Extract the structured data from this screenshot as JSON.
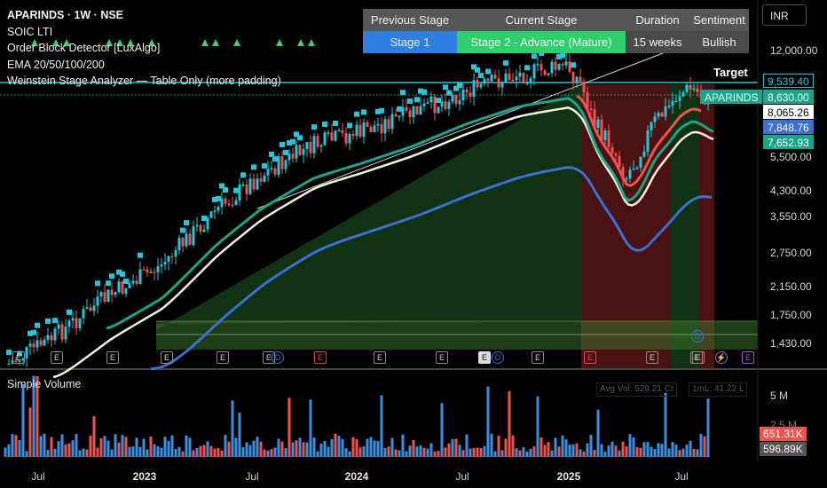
{
  "legend": {
    "symbol_line": "APARINDS · 1W · NSE",
    "indicator1": "SOIC LTI",
    "indicator2": "Order Block Detector [LuxAlgo]",
    "indicator3": "EMA 20/50/100/200",
    "indicator4": "Weinstein Stage Analyzer — Table Only (more padding)"
  },
  "stage_table": {
    "headers": [
      "Previous Stage",
      "Current Stage",
      "Duration",
      "Sentiment"
    ],
    "values": [
      "Stage 1",
      "Stage 2 - Advance (Mature)",
      "15 weeks",
      "Bullish"
    ],
    "prev_color": "#2f7fe0",
    "current_color": "#2fcf6d"
  },
  "currency_button": "INR",
  "target_label": "Target",
  "price_axis": [
    "12,000.00",
    "5,500.00",
    "4,300.00",
    "3,550.00",
    "2,750.00",
    "2,150.00",
    "1,750.00",
    "1,430.00"
  ],
  "price_tags": [
    {
      "text": "9,539.40",
      "bg": "#000000",
      "fg": "#26c6da",
      "border": "#26c6da"
    },
    {
      "text": "APARINDS",
      "bg": "#1aa58a",
      "fg": "#e8fff8",
      "border": "#1aa58a"
    },
    {
      "text": "8,630.00",
      "bg": "#1aa58a",
      "fg": "#ffffff",
      "border": "#1aa58a"
    },
    {
      "text": "8,065.26",
      "bg": "#ffffff",
      "fg": "#000000",
      "border": "#ffffff"
    },
    {
      "text": "7,848.76",
      "bg": "#3b6fd1",
      "fg": "#ffffff",
      "border": "#3b6fd1"
    },
    {
      "text": "7,652.93",
      "bg": "#1aa58a",
      "fg": "#ffffff",
      "border": "#1aa58a"
    }
  ],
  "events": [
    {
      "label": "E",
      "kind": "normal"
    },
    {
      "label": "E",
      "kind": "normal"
    },
    {
      "label": "E",
      "kind": "normal"
    },
    {
      "label": "E",
      "kind": "normal"
    },
    {
      "label": "E",
      "kind": "normal"
    },
    {
      "label": "E",
      "kind": "normal"
    },
    {
      "label": "D",
      "kind": "div"
    },
    {
      "label": "E",
      "kind": "red"
    },
    {
      "label": "E",
      "kind": "normal"
    },
    {
      "label": "E",
      "kind": "normal"
    },
    {
      "label": "E",
      "kind": "white"
    },
    {
      "label": "D",
      "kind": "div"
    },
    {
      "label": "E",
      "kind": "normal"
    },
    {
      "label": "E",
      "kind": "red"
    },
    {
      "label": "E",
      "kind": "normal"
    },
    {
      "label": "E",
      "kind": "normal"
    },
    {
      "label": "D",
      "kind": "div"
    },
    {
      "label": "E",
      "kind": "normal"
    },
    {
      "label": "⚡",
      "kind": "bolt"
    },
    {
      "label": "E",
      "kind": "purple"
    }
  ],
  "volume": {
    "title": "Simple Volume",
    "avg_vol": "Avg Vol: 529.21 Cr",
    "ml": "1mL: 41.22 L",
    "axis": [
      "5 M",
      "2.5 M"
    ],
    "tag_red": "651.31K",
    "tag_gray": "596.89K"
  },
  "time_axis": [
    {
      "text": "Jul",
      "bold": false
    },
    {
      "text": "2023",
      "bold": true
    },
    {
      "text": "Jul",
      "bold": false
    },
    {
      "text": "2024",
      "bold": true
    },
    {
      "text": "Jul",
      "bold": false
    },
    {
      "text": "2025",
      "bold": true
    },
    {
      "text": "Jul",
      "bold": false
    }
  ],
  "colors": {
    "up": "#26c6da",
    "down": "#ef5350",
    "ema_green": "#1aa58a",
    "ema_white": "#f5f2dc",
    "ema_blue": "#3b6fd1",
    "ema_red": "#ef5350",
    "zone_green": "#2e7d32",
    "zone_red": "#8b2020",
    "triangle": "#3ecf6e"
  }
}
